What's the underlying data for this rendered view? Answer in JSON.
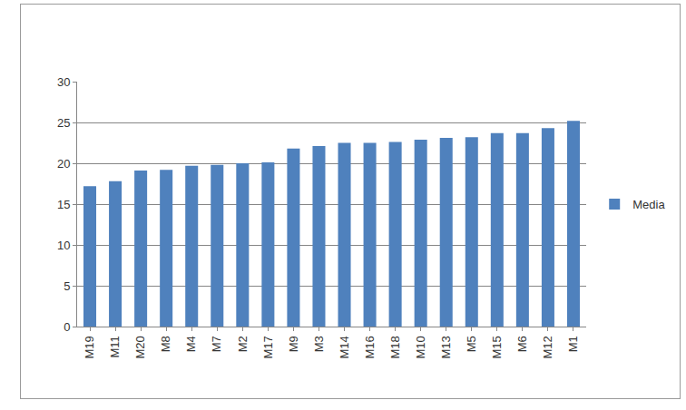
{
  "chart_data": {
    "type": "bar",
    "categories": [
      "M19",
      "M11",
      "M20",
      "M8",
      "M4",
      "M7",
      "M2",
      "M17",
      "M9",
      "M3",
      "M14",
      "M16",
      "M18",
      "M10",
      "M13",
      "M5",
      "M15",
      "M6",
      "M12",
      "M1"
    ],
    "series": [
      {
        "name": "Media",
        "color": "#4f81bd",
        "values": [
          17.2,
          17.8,
          19.1,
          19.2,
          19.7,
          19.8,
          20.0,
          20.1,
          21.8,
          22.1,
          22.5,
          22.5,
          22.6,
          22.9,
          23.1,
          23.2,
          23.7,
          23.7,
          24.3,
          25.2
        ]
      }
    ],
    "ylim": [
      0,
      30
    ],
    "yticks": [
      0,
      5,
      10,
      15,
      20,
      25,
      30
    ],
    "grid": true,
    "legend": "right"
  }
}
